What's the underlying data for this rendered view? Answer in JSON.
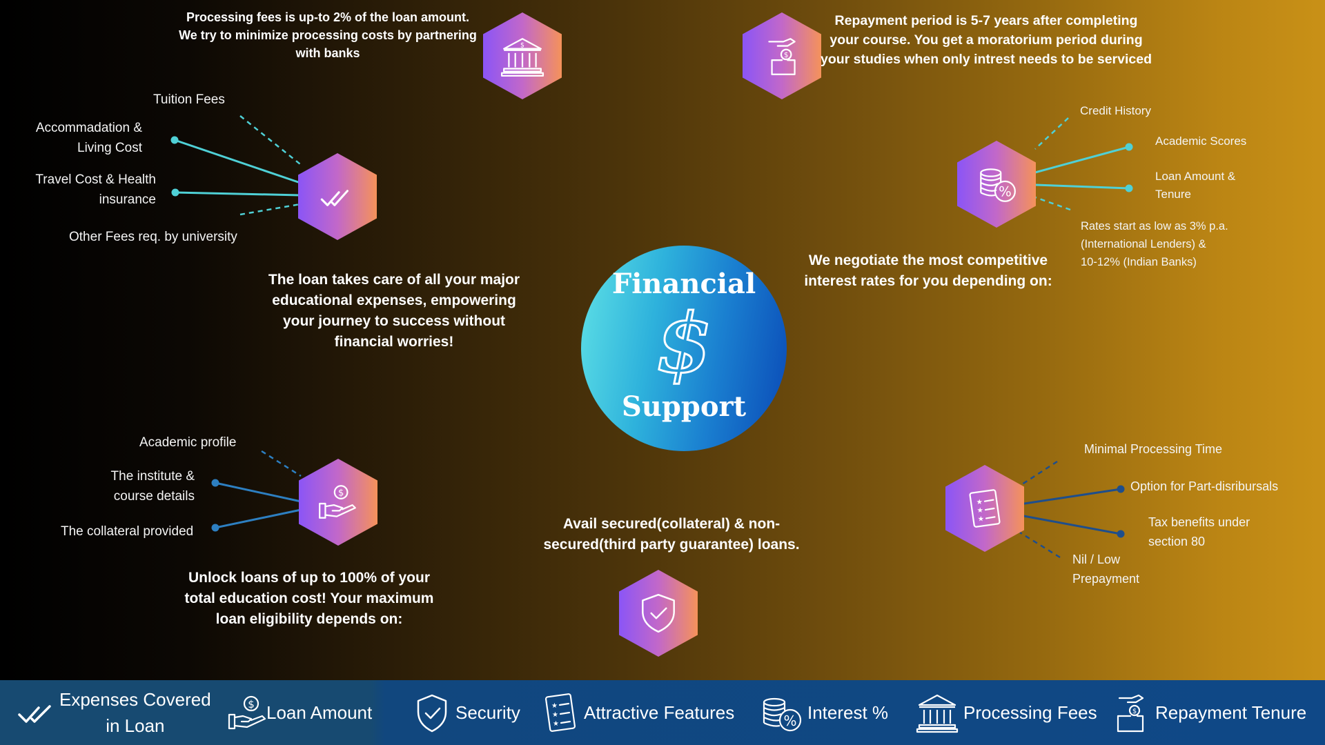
{
  "center": {
    "title_top": "Financial",
    "title_bottom": "Support",
    "symbol": "$"
  },
  "processing": {
    "description": "Processing fees is up-to 2% of the loan amount. We try to minimize processing costs by partnering with banks",
    "line1": "Processing fees is up-to 2% of the loan amount.",
    "line2": "We try to minimize processing costs by partnering",
    "line3": "with banks"
  },
  "repayment": {
    "line1": "Repayment period is 5-7 years after completing",
    "line2": "your course. You get a moratorium period during",
    "line3": "your studies when only intrest needs to be serviced"
  },
  "expenses": {
    "items": [
      "Tuition Fees",
      "Accommadation &",
      "Living Cost",
      "Travel Cost & Health",
      "insurance",
      "Other Fees req. by university"
    ],
    "summary": [
      "The loan takes care of all your major",
      "educational expenses, empowering",
      "your journey to success without",
      "financial worries!"
    ]
  },
  "interest": {
    "items": [
      "Credit History",
      "Academic Scores",
      "Loan Amount &",
      "Tenure"
    ],
    "rates": [
      "Rates start as low as 3% p.a.",
      "(International Lenders) &",
      "10-12% (Indian Banks)"
    ],
    "summary": [
      "We negotiate the most competitive",
      "interest rates for you depending on:"
    ]
  },
  "eligibility": {
    "items": [
      "Academic profile",
      "The institute &",
      "course details",
      "The collateral provided"
    ],
    "summary": [
      "Unlock loans of up to 100% of your",
      "total education cost! Your maximum",
      "loan eligibility depends on:"
    ]
  },
  "security": {
    "summary": [
      "Avail secured(collateral) & non-",
      "secured(third party guarantee) loans."
    ]
  },
  "features": {
    "items": [
      "Minimal Processing Time",
      "Option for Part-disribursals",
      "Tax benefits under",
      "section 80",
      "Nil / Low",
      "Prepayment"
    ]
  },
  "bottom_nav": [
    {
      "label_line1": "Expenses Covered",
      "label_line2": "in Loan",
      "icon": "double-check-icon"
    },
    {
      "label": "Loan Amount",
      "icon": "hand-coin-icon"
    },
    {
      "label": "Security",
      "icon": "shield-check-icon"
    },
    {
      "label": "Attractive Features",
      "icon": "checklist-icon"
    },
    {
      "label": "Interest %",
      "icon": "coins-percent-icon"
    },
    {
      "label": "Processing Fees",
      "icon": "bank-icon"
    },
    {
      "label": "Repayment Tenure",
      "icon": "hand-dollar-box-icon"
    }
  ],
  "colors": {
    "accent_cyan": "#4fd0d6",
    "accent_blue": "#2d7fc1",
    "hex_start": "#8b55f6",
    "hex_end": "#f5925a",
    "bar": "#164a7f"
  }
}
